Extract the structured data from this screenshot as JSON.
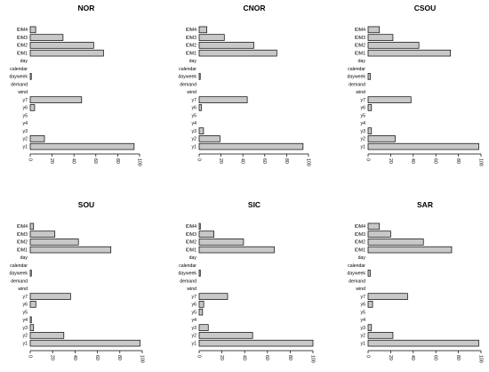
{
  "chart_data": [
    {
      "type": "bar",
      "orientation": "horizontal",
      "title": "NOR",
      "categories": [
        "IDM4",
        "IDM3",
        "IDM2",
        "IDM1",
        "day",
        "calendar",
        "dayweek",
        "demand",
        "wind",
        "y7",
        "y6",
        "y5",
        "y4",
        "y3",
        "y2",
        "y1"
      ],
      "values": [
        5,
        30,
        58,
        67,
        0,
        0,
        1,
        0,
        0,
        47,
        4,
        0,
        0,
        0,
        13,
        95
      ],
      "xlim": [
        0,
        100
      ],
      "xticks": [
        0,
        20,
        40,
        60,
        80,
        100
      ]
    },
    {
      "type": "bar",
      "orientation": "horizontal",
      "title": "CNOR",
      "categories": [
        "IDM4",
        "IDM3",
        "IDM2",
        "IDM1",
        "day",
        "calendar",
        "dayweek",
        "demand",
        "wind",
        "y7",
        "y6",
        "y5",
        "y4",
        "y3",
        "y2",
        "y1"
      ],
      "values": [
        7,
        23,
        50,
        71,
        0,
        0,
        1,
        0,
        0,
        44,
        2,
        0,
        0,
        4,
        19,
        95
      ],
      "xlim": [
        0,
        100
      ],
      "xticks": [
        0,
        20,
        40,
        60,
        80,
        100
      ]
    },
    {
      "type": "bar",
      "orientation": "horizontal",
      "title": "CSOU",
      "categories": [
        "IDM4",
        "IDM3",
        "IDM2",
        "IDM1",
        "day",
        "calendar",
        "dayweek",
        "demand",
        "wind",
        "y7",
        "y6",
        "y5",
        "y4",
        "y3",
        "y2",
        "y1"
      ],
      "values": [
        10,
        22,
        45,
        73,
        0,
        0,
        2,
        0,
        0,
        38,
        3,
        0,
        0,
        3,
        24,
        98
      ],
      "xlim": [
        0,
        100
      ],
      "xticks": [
        0,
        20,
        40,
        60,
        80,
        100
      ]
    },
    {
      "type": "bar",
      "orientation": "horizontal",
      "title": "SOU",
      "categories": [
        "IDM4",
        "IDM3",
        "IDM2",
        "IDM1",
        "day",
        "calendar",
        "dayweek",
        "demand",
        "wind",
        "y7",
        "y6",
        "y5",
        "y4",
        "y3",
        "y2",
        "y1"
      ],
      "values": [
        3,
        22,
        43,
        72,
        0,
        0,
        1,
        0,
        0,
        36,
        5,
        0,
        1,
        3,
        30,
        98
      ],
      "xlim": [
        0,
        100
      ],
      "xticks": [
        0,
        20,
        40,
        60,
        80,
        100
      ]
    },
    {
      "type": "bar",
      "orientation": "horizontal",
      "title": "SIC",
      "categories": [
        "IDM4",
        "IDM3",
        "IDM2",
        "IDM1",
        "day",
        "calendar",
        "dayweek",
        "demand",
        "wind",
        "y7",
        "y6",
        "y5",
        "y4",
        "y3",
        "y2",
        "y1"
      ],
      "values": [
        1,
        13,
        39,
        66,
        0,
        0,
        1,
        0,
        0,
        25,
        4,
        3,
        0,
        8,
        47,
        100
      ],
      "xlim": [
        0,
        100
      ],
      "xticks": [
        0,
        20,
        40,
        60,
        80,
        100
      ]
    },
    {
      "type": "bar",
      "orientation": "horizontal",
      "title": "SAR",
      "categories": [
        "IDM4",
        "IDM3",
        "IDM2",
        "IDM1",
        "day",
        "calendar",
        "dayweek",
        "demand",
        "wind",
        "y7",
        "y6",
        "y5",
        "y4",
        "y3",
        "y2",
        "y1"
      ],
      "values": [
        10,
        20,
        49,
        74,
        0,
        0,
        2,
        0,
        0,
        35,
        4,
        0,
        0,
        3,
        22,
        98
      ],
      "xlim": [
        0,
        100
      ],
      "xticks": [
        0,
        20,
        40,
        60,
        80,
        100
      ]
    }
  ]
}
